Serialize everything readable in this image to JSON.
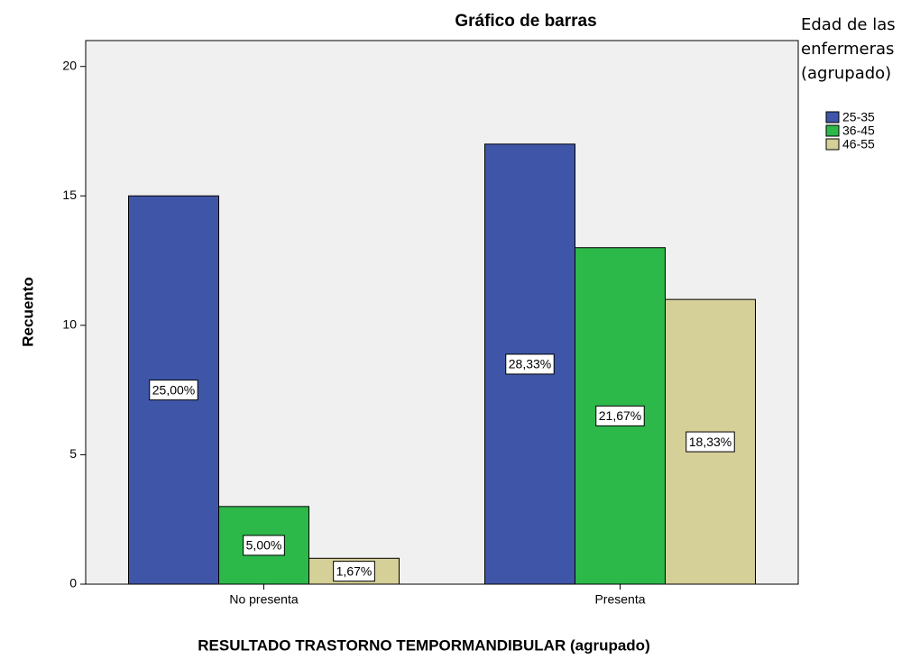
{
  "chart_data": {
    "type": "bar",
    "title": "Gráfico de barras",
    "x_label": "RESULTADO TRASTORNO TEMPORMANDIBULAR (agrupado)",
    "y_label": "Recuento",
    "legend_title": "Edad de las enfermeras (agrupado)",
    "categories": [
      "No presenta",
      "Presenta"
    ],
    "series": [
      {
        "name": "25-35",
        "color": "#3f56a8",
        "values": [
          15,
          17
        ],
        "percent_labels": [
          "25,00%",
          "28,33%"
        ]
      },
      {
        "name": "36-45",
        "color": "#2db84a",
        "values": [
          3,
          13
        ],
        "percent_labels": [
          "5,00%",
          "21,67%"
        ]
      },
      {
        "name": "46-55",
        "color": "#d5cf98",
        "values": [
          1,
          11
        ],
        "percent_labels": [
          "1,67%",
          "18,33%"
        ]
      }
    ],
    "ylim": [
      0,
      21
    ],
    "yticks": [
      0,
      5,
      10,
      15,
      20
    ],
    "grid": false,
    "legend": "right"
  }
}
